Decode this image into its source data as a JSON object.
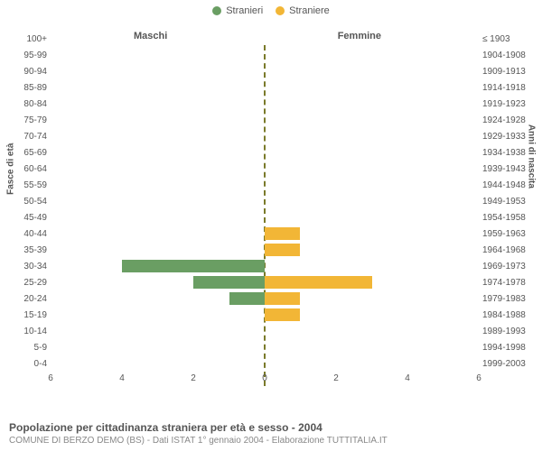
{
  "legend": {
    "male": {
      "label": "Stranieri",
      "color": "#6a9e63"
    },
    "female": {
      "label": "Straniere",
      "color": "#f2b636"
    }
  },
  "columns": {
    "left": "Maschi",
    "right": "Femmine"
  },
  "axis_titles": {
    "left": "Fasce di età",
    "right": "Anni di nascita"
  },
  "x": {
    "max": 6,
    "ticks": [
      0,
      2,
      4,
      6
    ]
  },
  "colors": {
    "male_bar": "#6a9e63",
    "female_bar": "#f2b636",
    "centerline": "#7a7a2a",
    "grid": "#dddddd",
    "text": "#555555",
    "subtext": "#888888",
    "background": "#ffffff"
  },
  "rows": [
    {
      "age": "100+",
      "birth": "≤ 1903",
      "m": 0,
      "f": 0
    },
    {
      "age": "95-99",
      "birth": "1904-1908",
      "m": 0,
      "f": 0
    },
    {
      "age": "90-94",
      "birth": "1909-1913",
      "m": 0,
      "f": 0
    },
    {
      "age": "85-89",
      "birth": "1914-1918",
      "m": 0,
      "f": 0
    },
    {
      "age": "80-84",
      "birth": "1919-1923",
      "m": 0,
      "f": 0
    },
    {
      "age": "75-79",
      "birth": "1924-1928",
      "m": 0,
      "f": 0
    },
    {
      "age": "70-74",
      "birth": "1929-1933",
      "m": 0,
      "f": 0
    },
    {
      "age": "65-69",
      "birth": "1934-1938",
      "m": 0,
      "f": 0
    },
    {
      "age": "60-64",
      "birth": "1939-1943",
      "m": 0,
      "f": 0
    },
    {
      "age": "55-59",
      "birth": "1944-1948",
      "m": 0,
      "f": 0
    },
    {
      "age": "50-54",
      "birth": "1949-1953",
      "m": 0,
      "f": 0
    },
    {
      "age": "45-49",
      "birth": "1954-1958",
      "m": 0,
      "f": 0
    },
    {
      "age": "40-44",
      "birth": "1959-1963",
      "m": 0,
      "f": 1
    },
    {
      "age": "35-39",
      "birth": "1964-1968",
      "m": 0,
      "f": 1
    },
    {
      "age": "30-34",
      "birth": "1969-1973",
      "m": 4,
      "f": 0
    },
    {
      "age": "25-29",
      "birth": "1974-1978",
      "m": 2,
      "f": 3
    },
    {
      "age": "20-24",
      "birth": "1979-1983",
      "m": 1,
      "f": 1
    },
    {
      "age": "15-19",
      "birth": "1984-1988",
      "m": 0,
      "f": 1
    },
    {
      "age": "10-14",
      "birth": "1989-1993",
      "m": 0,
      "f": 0
    },
    {
      "age": "5-9",
      "birth": "1994-1998",
      "m": 0,
      "f": 0
    },
    {
      "age": "0-4",
      "birth": "1999-2003",
      "m": 0,
      "f": 0
    }
  ],
  "footer": {
    "title": "Popolazione per cittadinanza straniera per età e sesso - 2004",
    "subtitle": "COMUNE DI BERZO DEMO (BS) - Dati ISTAT 1° gennaio 2004 - Elaborazione TUTTITALIA.IT"
  }
}
